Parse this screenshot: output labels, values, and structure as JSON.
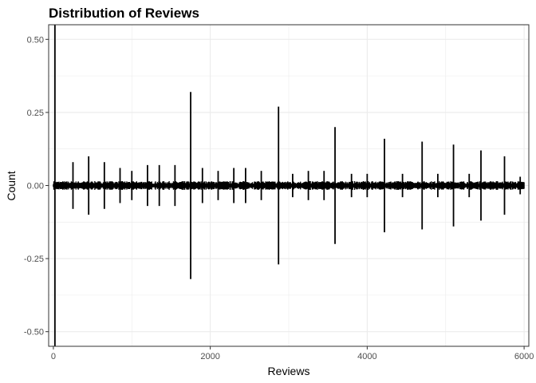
{
  "chart_data": {
    "type": "line",
    "title": "Distribution of Reviews",
    "xlabel": "Reviews",
    "ylabel": "Count",
    "xlim": [
      -60,
      6060
    ],
    "ylim": [
      -0.55,
      0.55
    ],
    "x_ticks": [
      0,
      2000,
      4000,
      6000
    ],
    "x_tick_labels": [
      "0",
      "2000",
      "4000",
      "6000"
    ],
    "y_ticks": [
      -0.5,
      -0.25,
      0.0,
      0.25,
      0.5
    ],
    "y_tick_labels": [
      "-0.50",
      "-0.25",
      "0.00",
      "0.25",
      "0.50"
    ],
    "grid": true,
    "legend": "none",
    "series": [
      {
        "baseline_noise_amplitude": 0.015,
        "x_range": [
          0,
          6000
        ],
        "spikes": [
          {
            "x": 20,
            "value": 0.55
          },
          {
            "x": 250,
            "value": 0.08
          },
          {
            "x": 450,
            "value": 0.1
          },
          {
            "x": 650,
            "value": 0.08
          },
          {
            "x": 850,
            "value": 0.06
          },
          {
            "x": 1000,
            "value": 0.05
          },
          {
            "x": 1200,
            "value": 0.07
          },
          {
            "x": 1350,
            "value": 0.07
          },
          {
            "x": 1550,
            "value": 0.07
          },
          {
            "x": 1750,
            "value": 0.32
          },
          {
            "x": 1900,
            "value": 0.06
          },
          {
            "x": 2100,
            "value": 0.05
          },
          {
            "x": 2300,
            "value": 0.06
          },
          {
            "x": 2450,
            "value": 0.06
          },
          {
            "x": 2650,
            "value": 0.05
          },
          {
            "x": 2870,
            "value": 0.27
          },
          {
            "x": 3050,
            "value": 0.04
          },
          {
            "x": 3250,
            "value": 0.05
          },
          {
            "x": 3450,
            "value": 0.05
          },
          {
            "x": 3590,
            "value": 0.2
          },
          {
            "x": 3800,
            "value": 0.04
          },
          {
            "x": 4000,
            "value": 0.04
          },
          {
            "x": 4220,
            "value": 0.16
          },
          {
            "x": 4450,
            "value": 0.04
          },
          {
            "x": 4700,
            "value": 0.15
          },
          {
            "x": 4900,
            "value": 0.04
          },
          {
            "x": 5100,
            "value": 0.14
          },
          {
            "x": 5300,
            "value": 0.04
          },
          {
            "x": 5450,
            "value": 0.12
          },
          {
            "x": 5750,
            "value": 0.1
          },
          {
            "x": 5950,
            "value": 0.03
          }
        ]
      }
    ]
  },
  "colors": {
    "line": "#000000",
    "grid": "#ebebeb",
    "panel_border": "#333333",
    "background": "#ffffff",
    "tick_label": "#4d4d4d"
  }
}
